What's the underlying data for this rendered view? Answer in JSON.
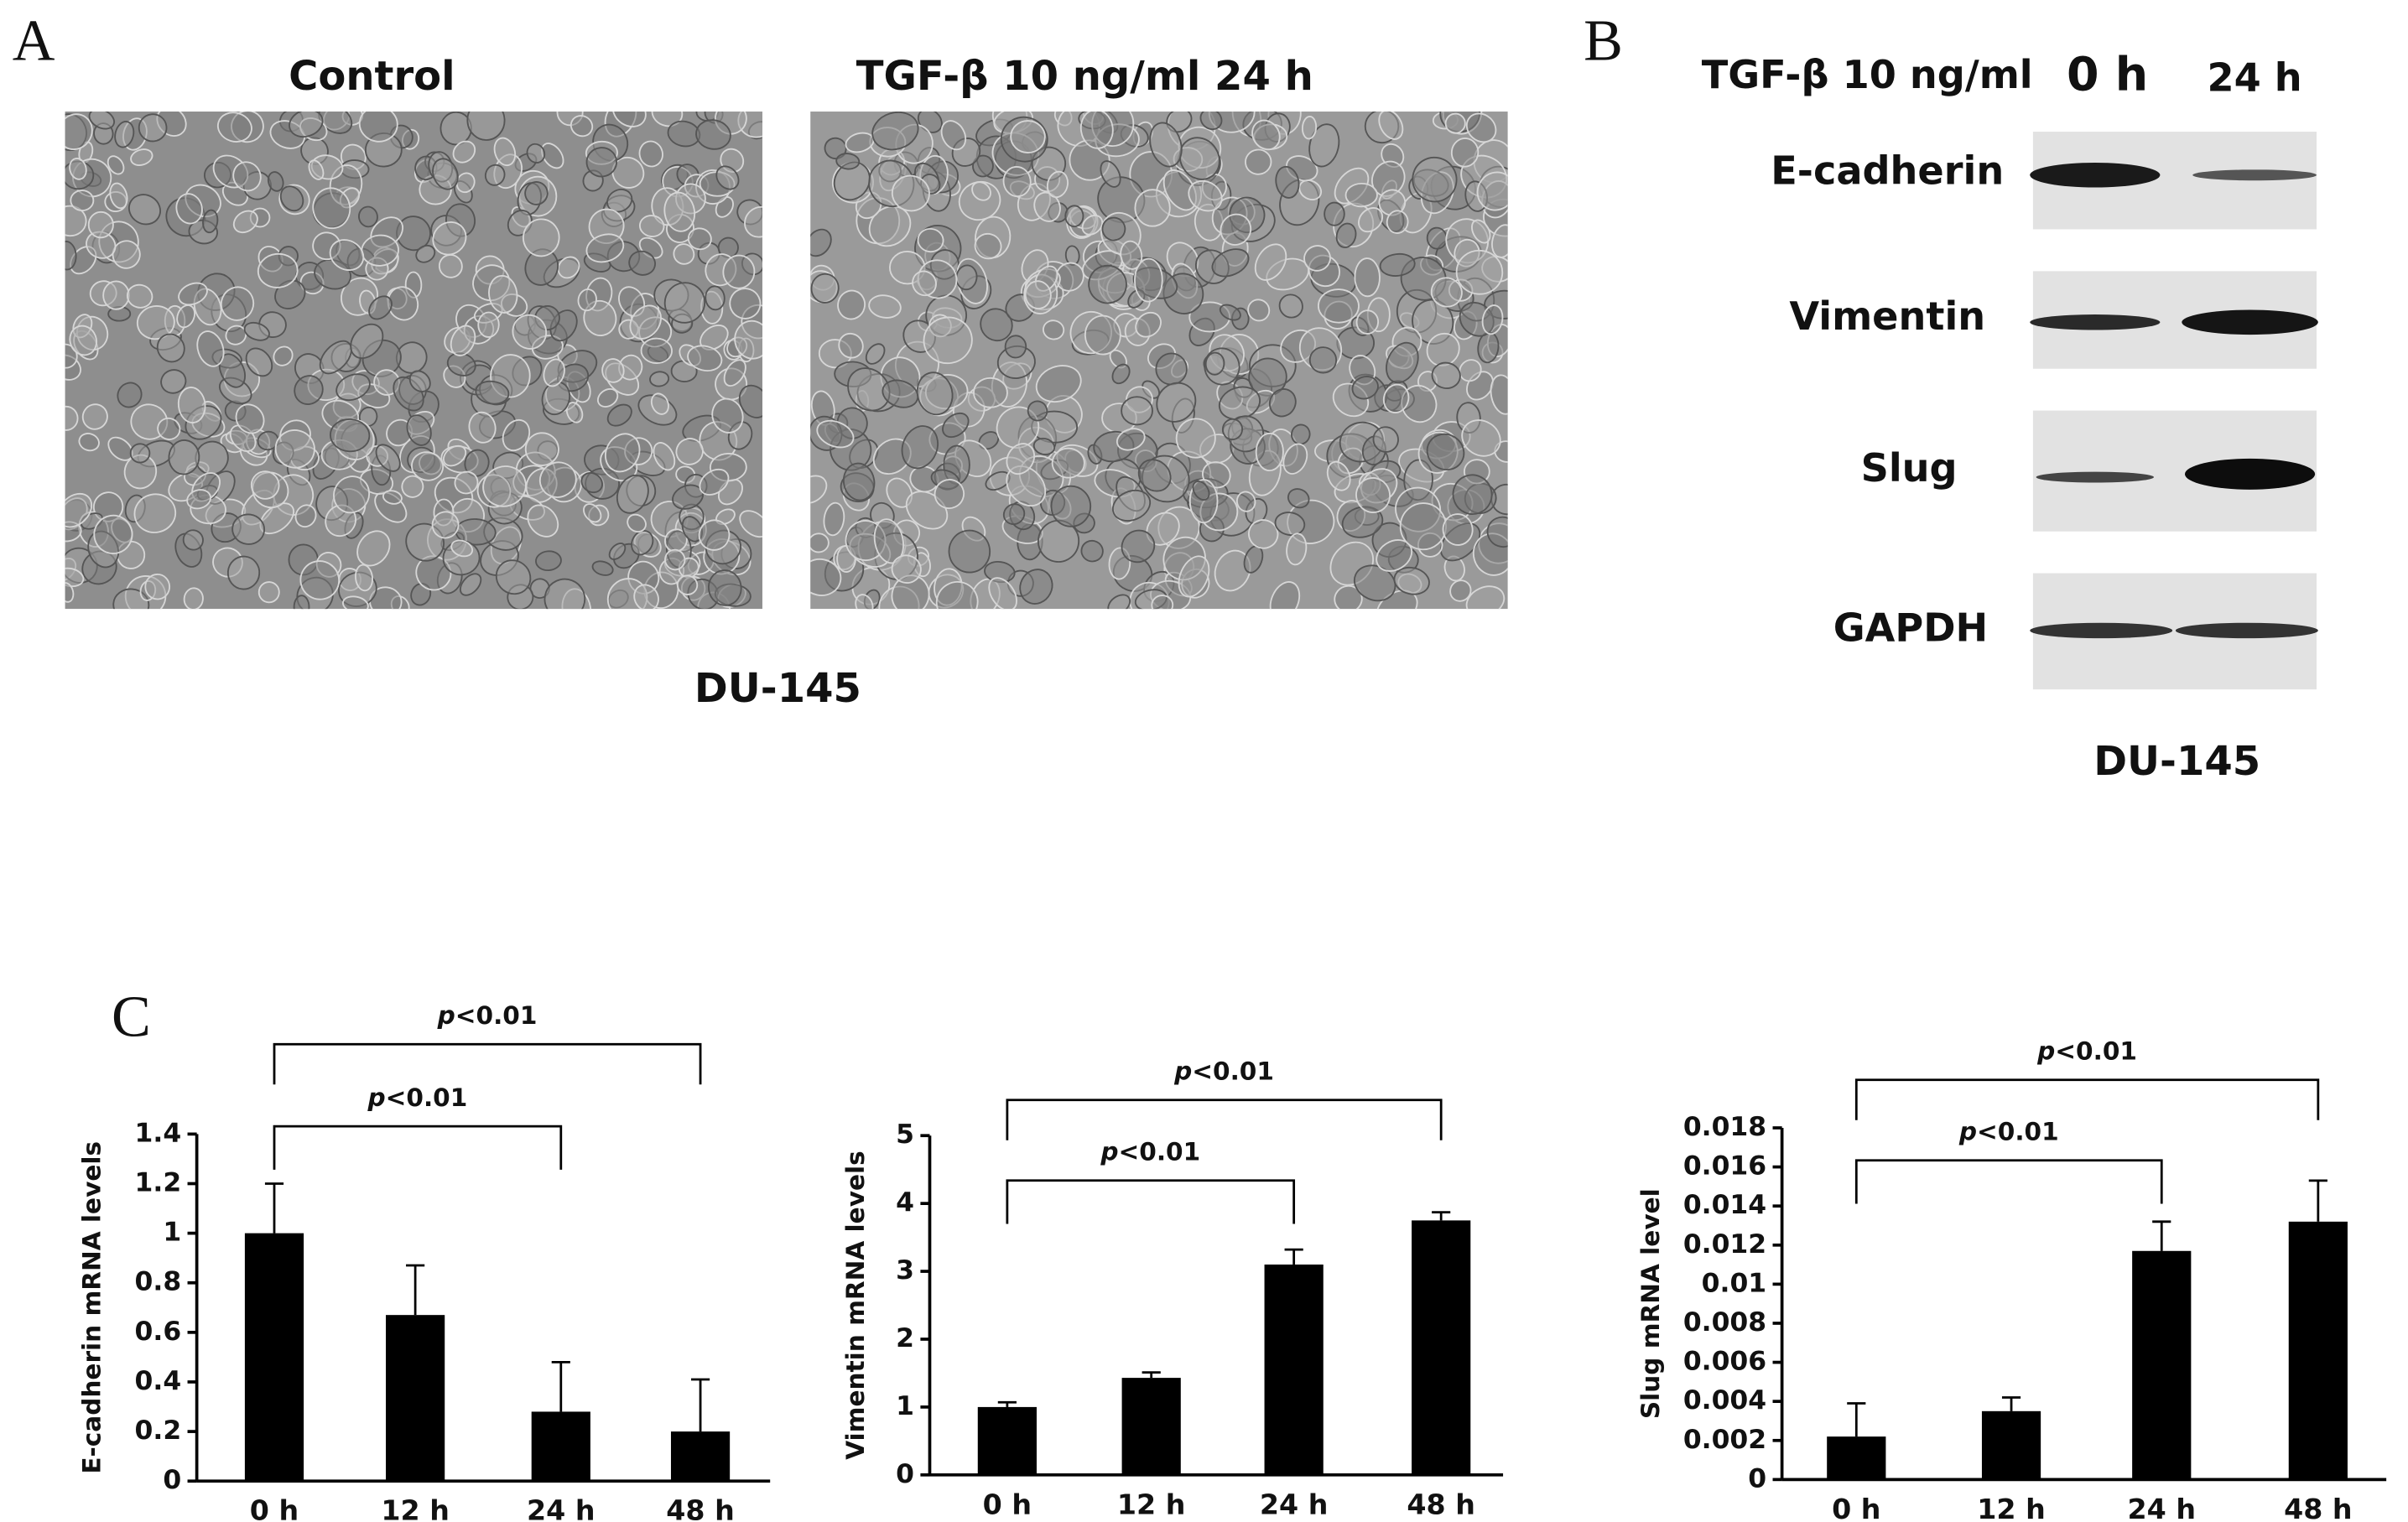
{
  "panel_a": {
    "label": "A",
    "images": [
      "Control",
      "TGF-β 10 ng/ml 24 h"
    ],
    "caption": "DU-145"
  },
  "panel_b": {
    "label": "B",
    "treatment": "TGF-β 10 ng/ml",
    "lanes": [
      "0 h",
      "24 h"
    ],
    "proteins": [
      "E-cadherin",
      "Vimentin",
      "Slug",
      "GAPDH"
    ],
    "caption": "DU-145"
  },
  "panel_c": {
    "label": "C"
  },
  "chart_data": [
    {
      "type": "bar",
      "y_label": "E-cadherin mRNA levels",
      "categories": [
        "0 h",
        "12 h",
        "24 h",
        "48 h"
      ],
      "values": [
        1,
        0.67,
        0.28,
        0.2
      ],
      "errors": [
        0.2,
        0.2,
        0.2,
        0.21
      ],
      "color": "#000000",
      "ylim": [
        0,
        1.4
      ],
      "yticks": [
        0,
        0.2,
        0.4,
        0.6,
        0.8,
        1,
        1.2,
        1.4
      ],
      "annotations": [
        "p<0.01",
        "p<0.01"
      ]
    },
    {
      "type": "bar",
      "y_label": "Vimentin mRNA levels",
      "categories": [
        "0 h",
        "12 h",
        "24 h",
        "48 h"
      ],
      "values": [
        1,
        1.43,
        3.1,
        3.75
      ],
      "errors": [
        0.07,
        0.08,
        0.22,
        0.12
      ],
      "color": "#000000",
      "ylim": [
        0,
        5
      ],
      "yticks": [
        0,
        1,
        2,
        3,
        4,
        5
      ],
      "annotations": [
        "p<0.01",
        "p<0.01"
      ]
    },
    {
      "type": "bar",
      "y_label": "Slug mRNA level",
      "categories": [
        "0 h",
        "12 h",
        "24 h",
        "48 h"
      ],
      "values": [
        0.0022,
        0.0035,
        0.0117,
        0.0132
      ],
      "errors": [
        0.0017,
        0.0007,
        0.0015,
        0.0021
      ],
      "color": "#000000",
      "ylim": [
        0,
        0.018
      ],
      "yticks": [
        0,
        0.002,
        0.004,
        0.006,
        0.008,
        0.01,
        0.012,
        0.014,
        0.016,
        0.018
      ],
      "annotations": [
        "p<0.01",
        "p<0.01"
      ]
    }
  ]
}
